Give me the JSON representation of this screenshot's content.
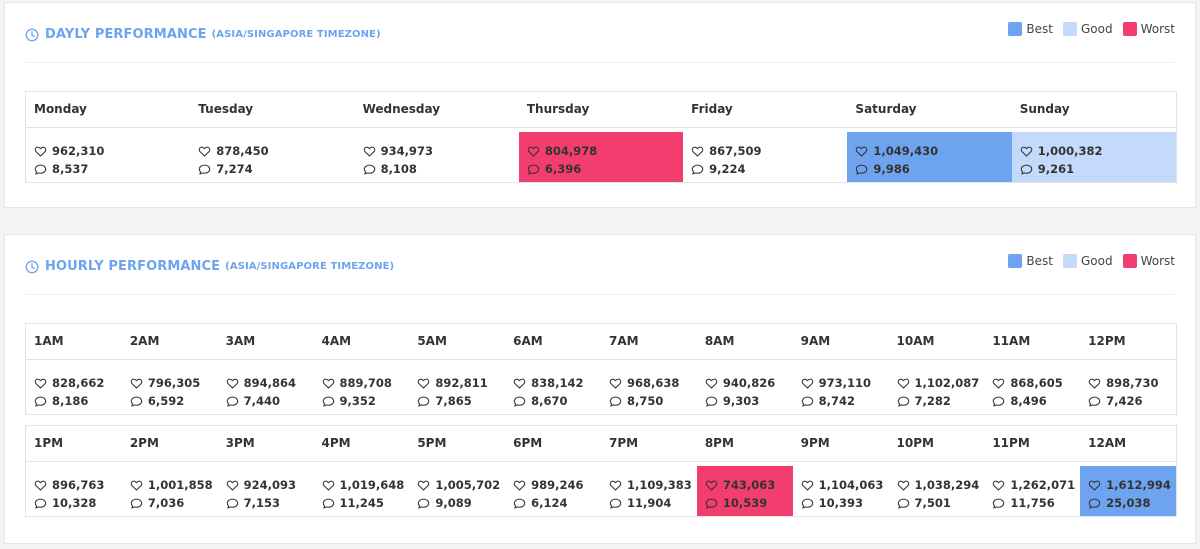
{
  "legend": {
    "best_label": "Best",
    "good_label": "Good",
    "worst_label": "Worst",
    "colors": {
      "best": "#6ea3ef",
      "good": "#c4dafb",
      "worst": "#f23d6f"
    }
  },
  "daily": {
    "title": "DAYLY PERFORMANCE",
    "timezone": "(ASIA/SINGAPORE TIMEZONE)",
    "icon": "clock-icon",
    "days": [
      {
        "label": "Monday",
        "likes": "962,310",
        "comments": "8,537",
        "rating": ""
      },
      {
        "label": "Tuesday",
        "likes": "878,450",
        "comments": "7,274",
        "rating": ""
      },
      {
        "label": "Wednesday",
        "likes": "934,973",
        "comments": "8,108",
        "rating": ""
      },
      {
        "label": "Thursday",
        "likes": "804,978",
        "comments": "6,396",
        "rating": "worst"
      },
      {
        "label": "Friday",
        "likes": "867,509",
        "comments": "9,224",
        "rating": ""
      },
      {
        "label": "Saturday",
        "likes": "1,049,430",
        "comments": "9,986",
        "rating": "best"
      },
      {
        "label": "Sunday",
        "likes": "1,000,382",
        "comments": "9,261",
        "rating": "good"
      }
    ]
  },
  "hourly": {
    "title": "HOURLY PERFORMANCE",
    "timezone": "(ASIA/SINGAPORE TIMEZONE)",
    "icon": "clock-icon",
    "rows": [
      [
        {
          "label": "1AM",
          "likes": "828,662",
          "comments": "8,186",
          "rating": ""
        },
        {
          "label": "2AM",
          "likes": "796,305",
          "comments": "6,592",
          "rating": ""
        },
        {
          "label": "3AM",
          "likes": "894,864",
          "comments": "7,440",
          "rating": ""
        },
        {
          "label": "4AM",
          "likes": "889,708",
          "comments": "9,352",
          "rating": ""
        },
        {
          "label": "5AM",
          "likes": "892,811",
          "comments": "7,865",
          "rating": ""
        },
        {
          "label": "6AM",
          "likes": "838,142",
          "comments": "8,670",
          "rating": ""
        },
        {
          "label": "7AM",
          "likes": "968,638",
          "comments": "8,750",
          "rating": ""
        },
        {
          "label": "8AM",
          "likes": "940,826",
          "comments": "9,303",
          "rating": ""
        },
        {
          "label": "9AM",
          "likes": "973,110",
          "comments": "8,742",
          "rating": ""
        },
        {
          "label": "10AM",
          "likes": "1,102,087",
          "comments": "7,282",
          "rating": ""
        },
        {
          "label": "11AM",
          "likes": "868,605",
          "comments": "8,496",
          "rating": ""
        },
        {
          "label": "12PM",
          "likes": "898,730",
          "comments": "7,426",
          "rating": ""
        }
      ],
      [
        {
          "label": "1PM",
          "likes": "896,763",
          "comments": "10,328",
          "rating": ""
        },
        {
          "label": "2PM",
          "likes": "1,001,858",
          "comments": "7,036",
          "rating": ""
        },
        {
          "label": "3PM",
          "likes": "924,093",
          "comments": "7,153",
          "rating": ""
        },
        {
          "label": "4PM",
          "likes": "1,019,648",
          "comments": "11,245",
          "rating": ""
        },
        {
          "label": "5PM",
          "likes": "1,005,702",
          "comments": "9,089",
          "rating": ""
        },
        {
          "label": "6PM",
          "likes": "989,246",
          "comments": "6,124",
          "rating": ""
        },
        {
          "label": "7PM",
          "likes": "1,109,383",
          "comments": "11,904",
          "rating": ""
        },
        {
          "label": "8PM",
          "likes": "743,063",
          "comments": "10,539",
          "rating": "worst"
        },
        {
          "label": "9PM",
          "likes": "1,104,063",
          "comments": "10,393",
          "rating": ""
        },
        {
          "label": "10PM",
          "likes": "1,038,294",
          "comments": "7,501",
          "rating": ""
        },
        {
          "label": "11PM",
          "likes": "1,262,071",
          "comments": "11,756",
          "rating": ""
        },
        {
          "label": "12AM",
          "likes": "1,612,994",
          "comments": "25,038",
          "rating": "best"
        }
      ]
    ]
  }
}
